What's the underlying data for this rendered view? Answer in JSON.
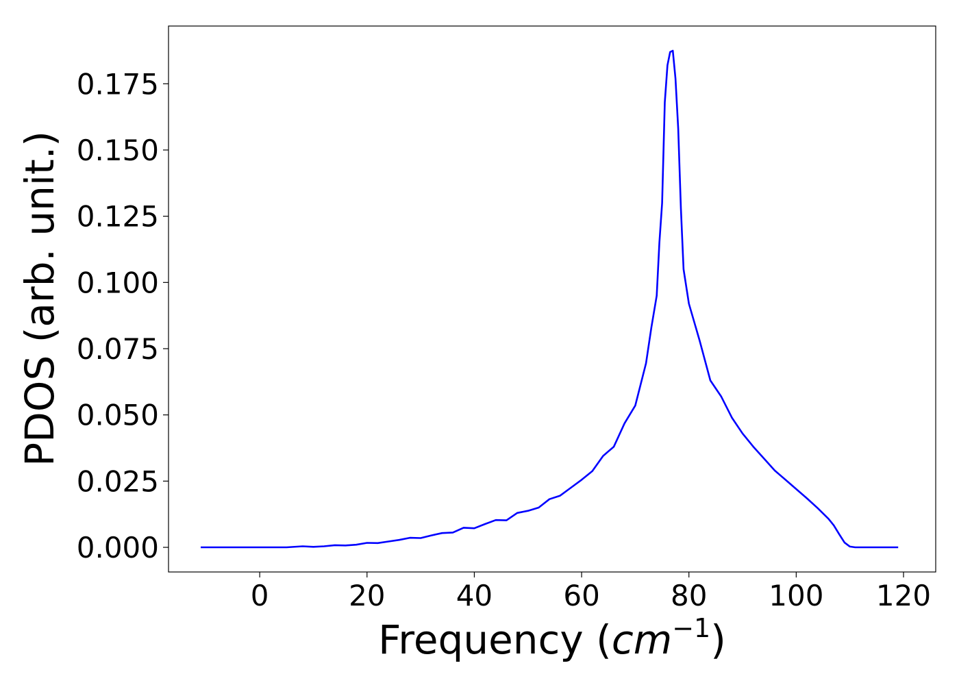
{
  "chart_data": {
    "type": "line",
    "title": "",
    "xlabel_prefix": "Frequency (",
    "xlabel_unit_base": "cm",
    "xlabel_unit_exp": "−1",
    "xlabel_suffix": ")",
    "ylabel": "PDOS (arb. unit.)",
    "xlim": [
      -17,
      126
    ],
    "ylim": [
      -0.0093,
      0.1968
    ],
    "xticks": [
      0,
      20,
      40,
      60,
      80,
      100,
      120
    ],
    "xtick_labels": [
      "0",
      "20",
      "40",
      "60",
      "80",
      "100",
      "120"
    ],
    "yticks": [
      0.0,
      0.025,
      0.05,
      0.075,
      0.1,
      0.125,
      0.15,
      0.175
    ],
    "ytick_labels": [
      "0.000",
      "0.025",
      "0.050",
      "0.075",
      "0.100",
      "0.125",
      "0.150",
      "0.175"
    ],
    "grid": false,
    "series": [
      {
        "color": "#0000ff",
        "points": [
          [
            -11,
            0.0
          ],
          [
            0,
            0.0
          ],
          [
            5,
            0.0
          ],
          [
            8,
            0.0004
          ],
          [
            10,
            0.0002
          ],
          [
            12,
            0.0004
          ],
          [
            14,
            0.0008
          ],
          [
            16,
            0.0007
          ],
          [
            18,
            0.001
          ],
          [
            20,
            0.0017
          ],
          [
            22,
            0.0016
          ],
          [
            24,
            0.0022
          ],
          [
            26,
            0.0028
          ],
          [
            28,
            0.0036
          ],
          [
            30,
            0.0035
          ],
          [
            32,
            0.0045
          ],
          [
            34,
            0.0054
          ],
          [
            36,
            0.0056
          ],
          [
            38,
            0.0074
          ],
          [
            40,
            0.0072
          ],
          [
            42,
            0.0088
          ],
          [
            44,
            0.0103
          ],
          [
            46,
            0.0102
          ],
          [
            48,
            0.013
          ],
          [
            50,
            0.0138
          ],
          [
            52,
            0.015
          ],
          [
            54,
            0.0182
          ],
          [
            56,
            0.0195
          ],
          [
            58,
            0.0225
          ],
          [
            60,
            0.0255
          ],
          [
            62,
            0.0288
          ],
          [
            64,
            0.0345
          ],
          [
            66,
            0.038
          ],
          [
            68,
            0.0468
          ],
          [
            70,
            0.0535
          ],
          [
            72,
            0.0695
          ],
          [
            73,
            0.083
          ],
          [
            74,
            0.095
          ],
          [
            74.5,
            0.115
          ],
          [
            75,
            0.13
          ],
          [
            75.5,
            0.168
          ],
          [
            76,
            0.182
          ],
          [
            76.5,
            0.187
          ],
          [
            77,
            0.1875
          ],
          [
            77.5,
            0.177
          ],
          [
            78,
            0.158
          ],
          [
            78.5,
            0.128
          ],
          [
            79,
            0.105
          ],
          [
            80,
            0.092
          ],
          [
            82,
            0.078
          ],
          [
            84,
            0.063
          ],
          [
            86,
            0.057
          ],
          [
            88,
            0.049
          ],
          [
            90,
            0.043
          ],
          [
            92,
            0.038
          ],
          [
            94,
            0.0335
          ],
          [
            96,
            0.029
          ],
          [
            98,
            0.0255
          ],
          [
            100,
            0.022
          ],
          [
            102,
            0.0185
          ],
          [
            104,
            0.0148
          ],
          [
            106,
            0.0108
          ],
          [
            107,
            0.0083
          ],
          [
            108,
            0.005
          ],
          [
            109,
            0.0018
          ],
          [
            110,
            0.0003
          ],
          [
            111,
            0.0
          ],
          [
            119,
            0.0
          ]
        ]
      }
    ]
  }
}
